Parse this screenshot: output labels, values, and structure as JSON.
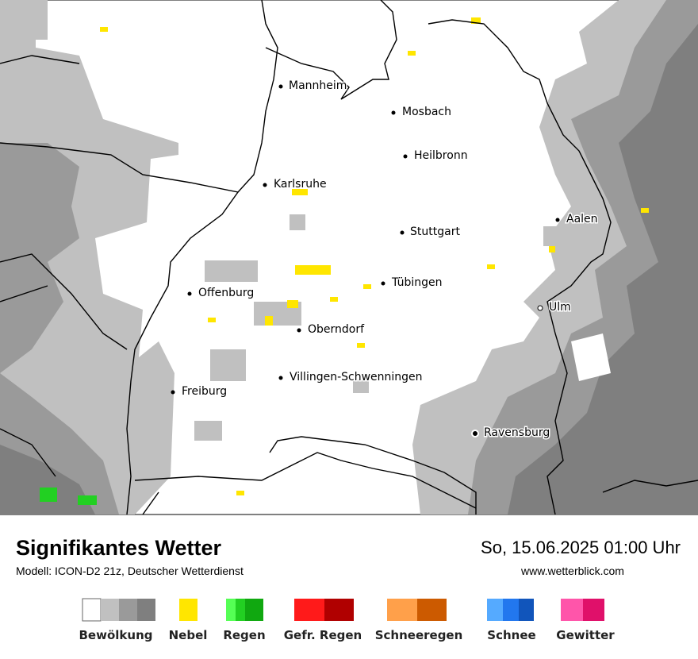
{
  "map": {
    "cities": [
      "Mannheim",
      "Mosbach",
      "Heilbronn",
      "Karlsruhe",
      "Aalen",
      "Stuttgart",
      "Tübingen",
      "Offenburg",
      "Ulm",
      "Oberndorf",
      "Villingen-Schwenningen",
      "Freiburg",
      "Ravensburg"
    ]
  },
  "footer": {
    "title": "Signifikantes Wetter",
    "model": "Modell: ICON-D2 21z, Deutscher Wetterdienst",
    "date": "So, 15.06.2025 01:00 Uhr",
    "website": "www.wetterblick.com"
  },
  "legend": [
    "Bewölkung",
    "Nebel",
    "Regen",
    "Gefr. Regen",
    "Schneeregen",
    "Schnee",
    "Gewitter"
  ]
}
